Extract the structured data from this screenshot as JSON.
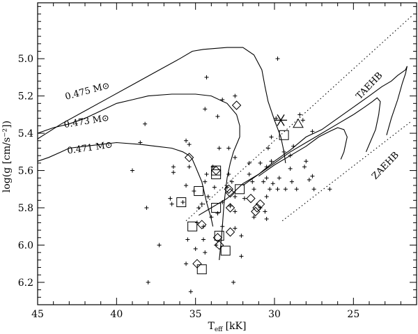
{
  "chart_data": {
    "type": "scatter",
    "title": "",
    "xlabel": "T",
    "xlabel_sub": "eff",
    "xlabel_unit": "[kK]",
    "ylabel": "log(g [cm/s⁻²])",
    "xlim": [
      45,
      21
    ],
    "ylim": [
      6.32,
      4.7
    ],
    "x_ticks": [
      45,
      40,
      35,
      30,
      25
    ],
    "x_tick_labels": [
      "45",
      "40",
      "35",
      "30",
      "25"
    ],
    "y_ticks": [
      5.0,
      5.2,
      5.4,
      5.6,
      5.8,
      6.0,
      6.2
    ],
    "y_tick_labels": [
      "5.0",
      "5.2",
      "5.4",
      "5.6",
      "5.8",
      "6.0",
      "6.2"
    ],
    "grid": false,
    "annotations": [
      {
        "text": "0.475 M⊙",
        "x": 43.2,
        "y": 5.22,
        "angle": -15
      },
      {
        "text": "0.473 M⊙",
        "x": 43.3,
        "y": 5.37,
        "angle": -9
      },
      {
        "text": "0.471 M⊙",
        "x": 43.1,
        "y": 5.51,
        "angle": -8
      },
      {
        "text": "TAEHB",
        "x": 24.6,
        "y": 5.22,
        "angle": -46
      },
      {
        "text": "ZAEHB",
        "x": 23.6,
        "y": 5.65,
        "angle": -46
      }
    ],
    "lines": [
      {
        "name": "0.475 M⊙",
        "style": "solid",
        "points": [
          [
            45,
            5.43
          ],
          [
            43.5,
            5.35
          ],
          [
            42,
            5.28
          ],
          [
            40.5,
            5.21
          ],
          [
            39,
            5.14
          ],
          [
            37.5,
            5.07
          ],
          [
            36,
            5.0
          ],
          [
            35.2,
            4.96
          ],
          [
            34.5,
            4.95
          ],
          [
            33,
            4.94
          ],
          [
            32,
            4.94
          ],
          [
            31.3,
            4.98
          ],
          [
            30.8,
            5.06
          ],
          [
            30.6,
            5.15
          ],
          [
            30.4,
            5.23
          ],
          [
            30,
            5.33
          ],
          [
            29.6,
            5.42
          ],
          [
            29.4,
            5.5
          ],
          [
            29.3,
            5.56
          ]
        ]
      },
      {
        "name": "0.473 M⊙",
        "style": "solid",
        "points": [
          [
            45,
            5.4
          ],
          [
            44,
            5.37
          ],
          [
            43,
            5.35
          ],
          [
            42,
            5.32
          ],
          [
            41,
            5.28
          ],
          [
            40,
            5.24
          ],
          [
            39,
            5.22
          ],
          [
            38,
            5.2
          ],
          [
            36.5,
            5.19
          ],
          [
            35,
            5.19
          ],
          [
            34,
            5.2
          ],
          [
            33,
            5.24
          ],
          [
            32.4,
            5.3
          ],
          [
            32.2,
            5.36
          ],
          [
            32.2,
            5.42
          ],
          [
            32.4,
            5.46
          ],
          [
            32.6,
            5.5
          ],
          [
            32.8,
            5.56
          ],
          [
            33,
            5.64
          ],
          [
            33.2,
            5.78
          ],
          [
            33.3,
            5.9
          ],
          [
            33.4,
            6.0
          ],
          [
            33.5,
            6.08
          ]
        ]
      },
      {
        "name": "0.471 M⊙",
        "style": "solid",
        "points": [
          [
            45,
            5.55
          ],
          [
            44.3,
            5.53
          ],
          [
            43.5,
            5.5
          ],
          [
            43,
            5.48
          ],
          [
            42,
            5.47
          ],
          [
            41,
            5.46
          ],
          [
            40,
            5.45
          ],
          [
            38.5,
            5.46
          ],
          [
            37.5,
            5.47
          ],
          [
            36.5,
            5.48
          ],
          [
            35.8,
            5.5
          ],
          [
            35.4,
            5.52
          ],
          [
            35.2,
            5.54
          ]
        ]
      },
      {
        "name": "main track",
        "style": "solid",
        "points": [
          [
            35.2,
            5.54
          ],
          [
            35,
            5.58
          ],
          [
            34.8,
            5.62
          ],
          [
            34.6,
            5.66
          ],
          [
            34.3,
            5.77
          ],
          [
            34.0,
            5.86
          ],
          [
            33.9,
            5.9
          ]
        ]
      },
      {
        "name": "main track 2",
        "style": "solid",
        "points": [
          [
            34.8,
            5.84
          ],
          [
            34,
            5.8
          ],
          [
            33,
            5.75
          ],
          [
            32,
            5.67
          ],
          [
            31,
            5.62
          ],
          [
            30,
            5.55
          ],
          [
            29,
            5.49
          ],
          [
            28,
            5.42
          ],
          [
            27,
            5.38
          ],
          [
            26,
            5.32
          ],
          [
            25,
            5.26
          ],
          [
            24,
            5.2
          ],
          [
            23.2,
            5.15
          ],
          [
            22.6,
            5.12
          ],
          [
            22.2,
            5.09
          ],
          [
            21.7,
            5.06
          ],
          [
            21.6,
            5.04
          ],
          [
            21.7,
            5.08
          ],
          [
            21.9,
            5.13
          ],
          [
            22.2,
            5.22
          ],
          [
            22.6,
            5.32
          ],
          [
            22.9,
            5.41
          ]
        ]
      },
      {
        "name": "inner loop 1",
        "style": "solid",
        "points": [
          [
            32,
            5.68
          ],
          [
            31,
            5.62
          ],
          [
            30,
            5.56
          ],
          [
            29,
            5.5
          ],
          [
            28,
            5.45
          ],
          [
            27,
            5.4
          ],
          [
            26,
            5.35
          ],
          [
            25,
            5.3
          ],
          [
            24.3,
            5.26
          ],
          [
            23.8,
            5.23
          ],
          [
            23.5,
            5.21
          ],
          [
            23.3,
            5.23
          ],
          [
            23.4,
            5.3
          ],
          [
            23.6,
            5.38
          ],
          [
            24,
            5.46
          ],
          [
            24.2,
            5.5
          ]
        ]
      },
      {
        "name": "inner loop 2",
        "style": "solid",
        "points": [
          [
            31,
            5.63
          ],
          [
            30,
            5.57
          ],
          [
            29,
            5.52
          ],
          [
            28,
            5.47
          ],
          [
            27.2,
            5.42
          ],
          [
            26.5,
            5.39
          ],
          [
            26,
            5.37
          ],
          [
            25.6,
            5.38
          ],
          [
            25.4,
            5.42
          ],
          [
            25.6,
            5.5
          ],
          [
            25.8,
            5.54
          ]
        ]
      },
      {
        "name": "TAEHB",
        "style": "dotted",
        "points": [
          [
            35.6,
            5.87
          ],
          [
            21.3,
            4.77
          ]
        ]
      },
      {
        "name": "ZAEHB",
        "style": "dotted",
        "points": [
          [
            29.5,
            5.87
          ],
          [
            21.4,
            5.34
          ]
        ]
      }
    ],
    "series": [
      {
        "name": "plus",
        "marker": "plus",
        "points": [
          [
            29.8,
            5.0
          ],
          [
            34.3,
            5.1
          ],
          [
            32.5,
            5.2
          ],
          [
            33.3,
            5.22
          ],
          [
            34.4,
            5.27
          ],
          [
            33.6,
            5.31
          ],
          [
            29.9,
            5.32
          ],
          [
            28.4,
            5.3
          ],
          [
            28.2,
            5.33
          ],
          [
            38.2,
            5.35
          ],
          [
            27.6,
            5.39
          ],
          [
            30.2,
            5.42
          ],
          [
            35.6,
            5.44
          ],
          [
            38.5,
            5.45
          ],
          [
            35.4,
            5.46
          ],
          [
            28.8,
            5.47
          ],
          [
            33.5,
            5.48
          ],
          [
            32.9,
            5.48
          ],
          [
            30.4,
            5.48
          ],
          [
            29.4,
            5.5
          ],
          [
            29,
            5.52
          ],
          [
            32.5,
            5.53
          ],
          [
            30.2,
            5.55
          ],
          [
            30.9,
            5.56
          ],
          [
            31.6,
            5.56
          ],
          [
            28,
            5.55
          ],
          [
            36.4,
            5.58
          ],
          [
            35.4,
            5.58
          ],
          [
            30.5,
            5.58
          ],
          [
            33.9,
            5.58
          ],
          [
            39,
            5.6
          ],
          [
            36.4,
            5.61
          ],
          [
            34.3,
            5.62
          ],
          [
            32.9,
            5.62
          ],
          [
            31.6,
            5.62
          ],
          [
            29,
            5.59
          ],
          [
            28.1,
            5.58
          ],
          [
            30.5,
            5.64
          ],
          [
            29.7,
            5.64
          ],
          [
            27.6,
            5.63
          ],
          [
            34.4,
            5.66
          ],
          [
            32.7,
            5.66
          ],
          [
            31.4,
            5.66
          ],
          [
            30.7,
            5.66
          ],
          [
            30.1,
            5.67
          ],
          [
            28.9,
            5.66
          ],
          [
            27.8,
            5.65
          ],
          [
            35.6,
            5.68
          ],
          [
            33.8,
            5.69
          ],
          [
            33,
            5.69
          ],
          [
            31.3,
            5.7
          ],
          [
            30.3,
            5.7
          ],
          [
            29.8,
            5.7
          ],
          [
            29.3,
            5.7
          ],
          [
            28.6,
            5.7
          ],
          [
            27.5,
            5.7
          ],
          [
            26.5,
            5.7
          ],
          [
            35.1,
            5.71
          ],
          [
            36.6,
            5.75
          ],
          [
            34.2,
            5.74
          ],
          [
            32.5,
            5.74
          ],
          [
            31.9,
            5.75
          ],
          [
            30.5,
            5.74
          ],
          [
            36.5,
            5.78
          ],
          [
            35.8,
            5.77
          ],
          [
            34.6,
            5.78
          ],
          [
            33.3,
            5.77
          ],
          [
            32.8,
            5.79
          ],
          [
            34.8,
            5.8
          ],
          [
            38.1,
            5.8
          ],
          [
            32.5,
            5.82
          ],
          [
            30.9,
            5.8
          ],
          [
            30.6,
            5.82
          ],
          [
            33.6,
            5.83
          ],
          [
            30.5,
            5.86
          ],
          [
            31.3,
            5.85
          ],
          [
            34,
            5.85
          ],
          [
            34.9,
            5.88
          ],
          [
            34.5,
            5.9
          ],
          [
            33.3,
            5.9
          ],
          [
            32.5,
            5.91
          ],
          [
            32.1,
            5.95
          ],
          [
            35.5,
            5.97
          ],
          [
            34.5,
            5.97
          ],
          [
            33.7,
            6.0
          ],
          [
            37.3,
            6.0
          ],
          [
            35,
            6.02
          ],
          [
            34.4,
            6.04
          ],
          [
            35.6,
            6.1
          ],
          [
            32.1,
            6.06
          ],
          [
            38,
            6.2
          ],
          [
            32.6,
            6.2
          ],
          [
            35.3,
            6.25
          ]
        ]
      },
      {
        "name": "diamond",
        "marker": "diamond",
        "points": [
          [
            32.4,
            5.25
          ],
          [
            35.4,
            5.53
          ],
          [
            33.7,
            5.6
          ],
          [
            32.9,
            5.7
          ],
          [
            32.8,
            5.72
          ],
          [
            31.5,
            5.75
          ],
          [
            30.9,
            5.78
          ],
          [
            31.1,
            5.8
          ],
          [
            31.2,
            5.82
          ],
          [
            32.8,
            5.8
          ],
          [
            34.6,
            5.89
          ],
          [
            32.8,
            5.93
          ],
          [
            33.6,
            5.96
          ],
          [
            33.5,
            6.0
          ],
          [
            34.9,
            6.1
          ]
        ]
      },
      {
        "name": "square",
        "marker": "square",
        "points": [
          [
            29.4,
            5.41
          ],
          [
            33.7,
            5.6
          ],
          [
            33.7,
            5.62
          ],
          [
            34.8,
            5.71
          ],
          [
            32.2,
            5.7
          ],
          [
            35.9,
            5.77
          ],
          [
            33.7,
            5.8
          ],
          [
            35.2,
            5.9
          ],
          [
            33.5,
            5.95
          ],
          [
            33.1,
            6.03
          ],
          [
            34.6,
            6.13
          ]
        ]
      },
      {
        "name": "asterisk",
        "marker": "asterisk",
        "points": [
          [
            29.6,
            5.33
          ]
        ]
      },
      {
        "name": "triangle",
        "marker": "triangle",
        "points": [
          [
            28.5,
            5.35
          ]
        ]
      }
    ]
  }
}
